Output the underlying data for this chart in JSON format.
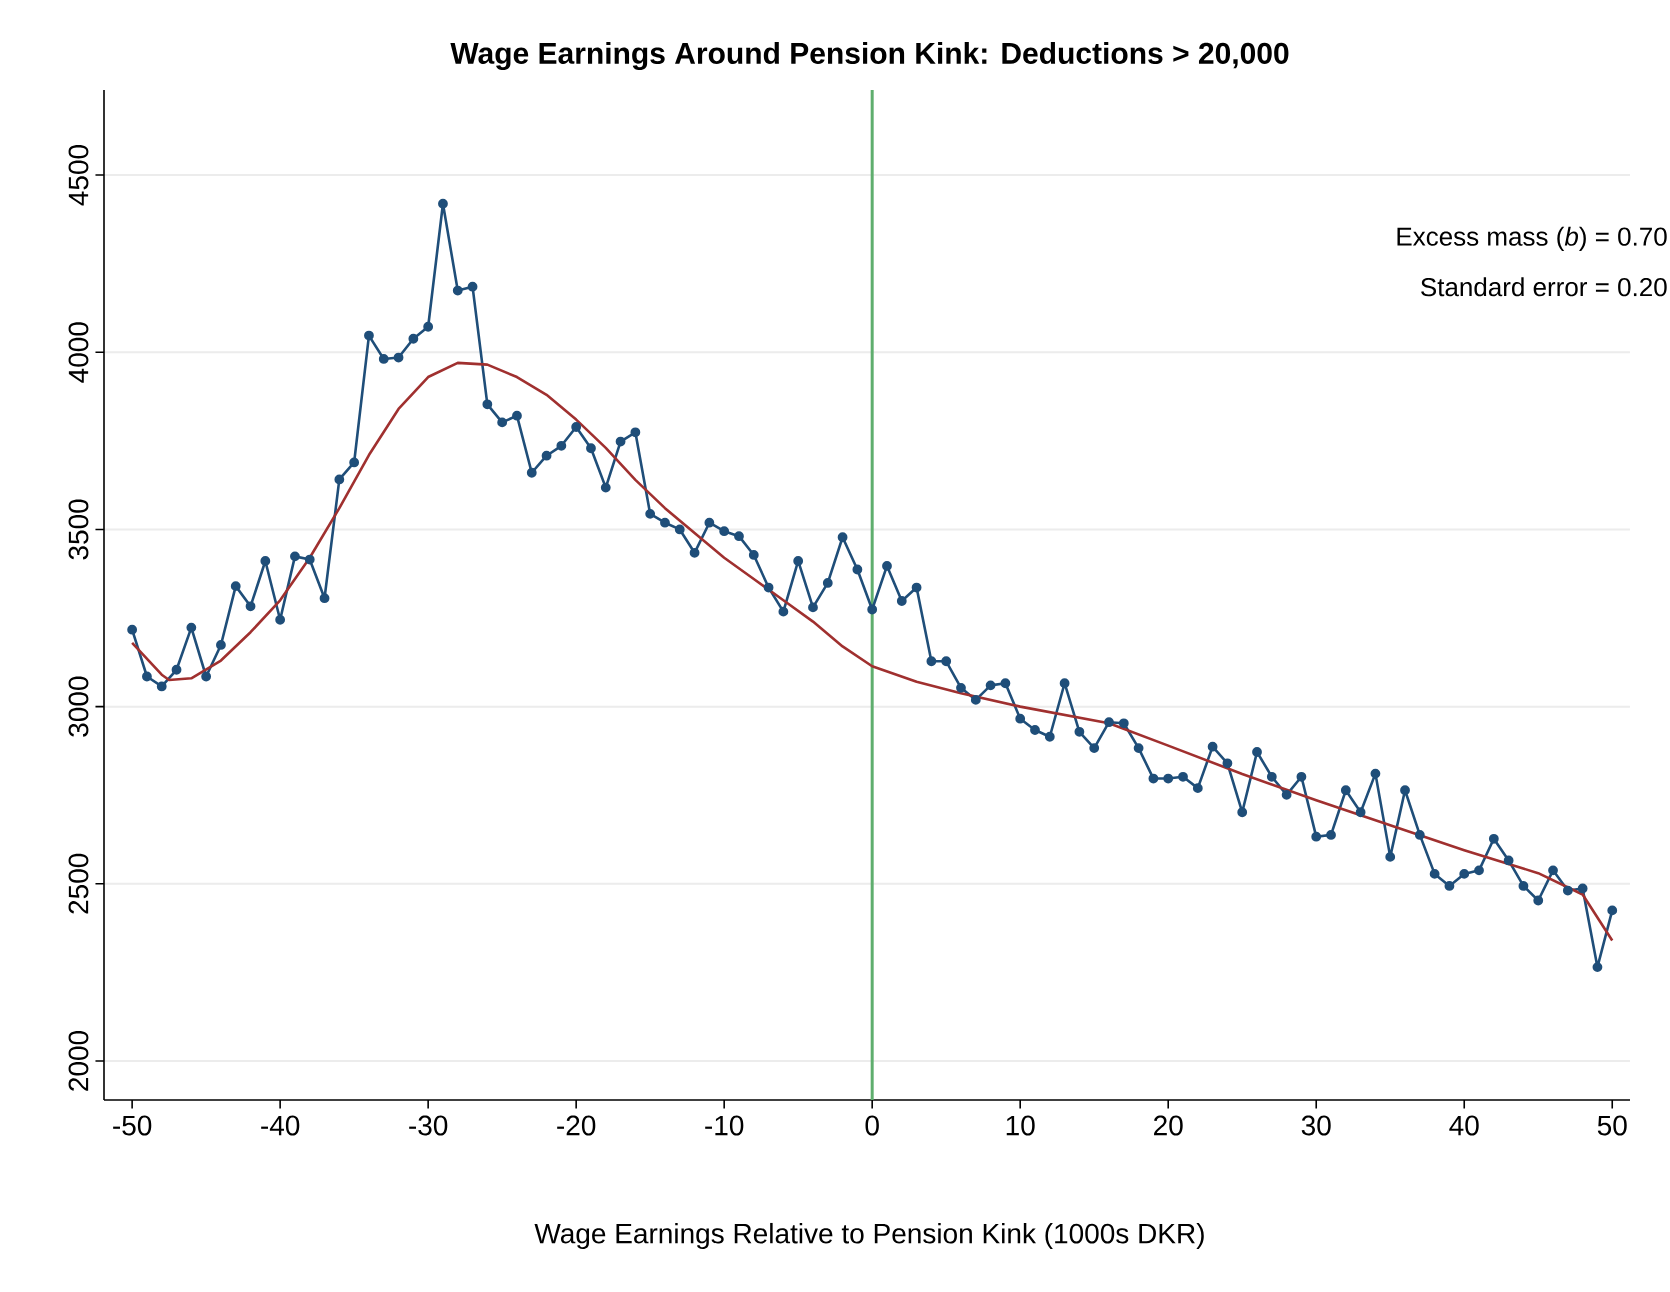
{
  "chart_data": {
    "type": "line",
    "title": "Wage Earnings Around Pension Kink: Deductions > 20,000",
    "xlabel": "Wage Earnings Relative to Pension Kink (1000s DKR)",
    "xlim": [
      -51.9,
      51.2
    ],
    "ylim": [
      1890,
      4740
    ],
    "xticks": [
      -50,
      -40,
      -30,
      -20,
      -10,
      0,
      10,
      20,
      30,
      40,
      50
    ],
    "yticks": [
      2000,
      2500,
      3000,
      3500,
      4000,
      4500
    ],
    "grid": "y",
    "annotations": [
      "Excess mass (*b*) = 0.70",
      "Standard error = 0.20"
    ],
    "ref_lines": [
      {
        "axis": "x",
        "value": 0,
        "color": "#5fae6e"
      }
    ],
    "series": [
      {
        "color": "#1f4e79",
        "marker": "circle",
        "x": [
          -50,
          -49,
          -48,
          -47,
          -46,
          -45,
          -44,
          -43,
          -42,
          -41,
          -40,
          -39,
          -38,
          -37,
          -36,
          -35,
          -34,
          -33,
          -32,
          -31,
          -30,
          -29,
          -28,
          -27,
          -26,
          -25,
          -24,
          -23,
          -22,
          -21,
          -20,
          -19,
          -18,
          -17,
          -16,
          -15,
          -14,
          -13,
          -12,
          -11,
          -10,
          -9,
          -8,
          -7,
          -6,
          -5,
          -4,
          -3,
          -2,
          -1,
          0,
          1,
          2,
          3,
          4,
          5,
          6,
          7,
          8,
          9,
          10,
          11,
          12,
          13,
          14,
          15,
          16,
          17,
          18,
          19,
          20,
          21,
          22,
          23,
          24,
          25,
          26,
          27,
          28,
          29,
          30,
          31,
          32,
          33,
          34,
          35,
          36,
          37,
          38,
          39,
          40,
          41,
          42,
          43,
          44,
          45,
          46,
          47,
          48,
          49,
          50
        ],
        "values": [
          3217,
          3085,
          3057,
          3104,
          3223,
          3085,
          3174,
          3340,
          3283,
          3411,
          3245,
          3424,
          3415,
          3306,
          3641,
          3689,
          4047,
          3981,
          3985,
          4038,
          4072,
          4419,
          4174,
          4185,
          3853,
          3802,
          3821,
          3660,
          3708,
          3736,
          3789,
          3729,
          3618,
          3748,
          3774,
          3544,
          3519,
          3500,
          3434,
          3519,
          3495,
          3481,
          3428,
          3336,
          3268,
          3411,
          3280,
          3349,
          3478,
          3387,
          3274,
          3397,
          3298,
          3336,
          3128,
          3128,
          3053,
          3019,
          3060,
          3066,
          2966,
          2934,
          2915,
          3066,
          2929,
          2883,
          2956,
          2953,
          2883,
          2797,
          2797,
          2802,
          2770,
          2887,
          2840,
          2702,
          2872,
          2802,
          2751,
          2802,
          2633,
          2638,
          2764,
          2702,
          2811,
          2576,
          2764,
          2638,
          2528,
          2494,
          2528,
          2538,
          2627,
          2566,
          2494,
          2453,
          2538,
          2481,
          2487,
          2265,
          2425
        ]
      },
      {
        "color": "#a0302f",
        "marker": "none",
        "x": [
          -50,
          -48,
          -47.5,
          -46,
          -44,
          -42,
          -40,
          -38,
          -36,
          -34,
          -32,
          -30,
          -28,
          -26,
          -24,
          -22,
          -20,
          -18,
          -16,
          -14,
          -12,
          -10,
          -8,
          -6,
          -4,
          -2,
          0,
          3,
          6,
          10,
          16,
          20,
          25,
          30,
          35,
          40,
          45,
          48,
          50
        ],
        "values": [
          3180,
          3090,
          3075,
          3080,
          3130,
          3210,
          3300,
          3420,
          3560,
          3710,
          3840,
          3930,
          3970,
          3965,
          3930,
          3880,
          3810,
          3730,
          3640,
          3560,
          3490,
          3420,
          3360,
          3300,
          3240,
          3170,
          3114,
          3070,
          3038,
          3000,
          2953,
          2890,
          2810,
          2736,
          2665,
          2595,
          2530,
          2470,
          2340
        ]
      }
    ]
  }
}
